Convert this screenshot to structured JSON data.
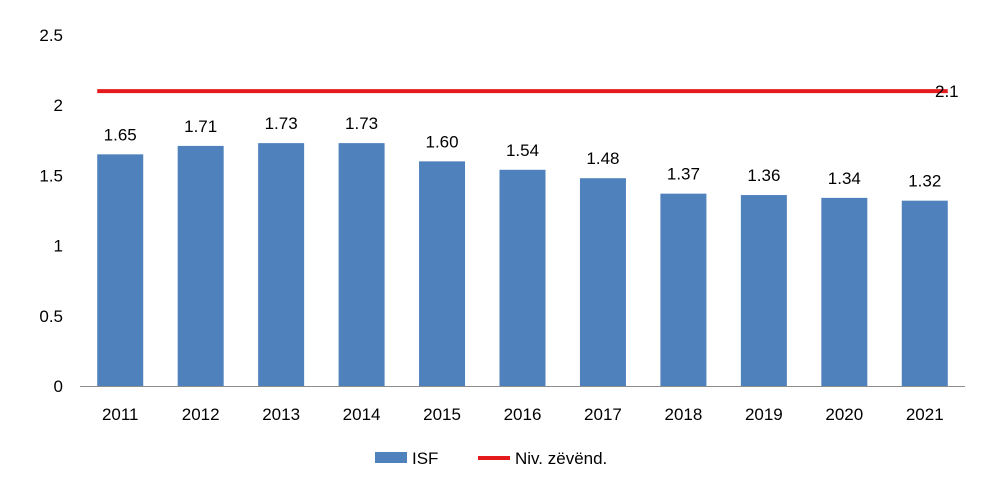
{
  "chart_data": {
    "type": "bar",
    "categories": [
      "2011",
      "2012",
      "2013",
      "2014",
      "2015",
      "2016",
      "2017",
      "2018",
      "2019",
      "2020",
      "2021"
    ],
    "series": [
      {
        "name": "ISF",
        "type": "bar",
        "values": [
          1.65,
          1.71,
          1.73,
          1.73,
          1.6,
          1.54,
          1.48,
          1.37,
          1.36,
          1.34,
          1.32
        ],
        "value_labels": [
          "1.65",
          "1.71",
          "1.73",
          "1.73",
          "1.60",
          "1.54",
          "1.48",
          "1.37",
          "1.36",
          "1.34",
          "1.32"
        ],
        "color": "#4F81BD"
      },
      {
        "name": "Niv. zëvënd.",
        "type": "line",
        "values": [
          2.1,
          2.1,
          2.1,
          2.1,
          2.1,
          2.1,
          2.1,
          2.1,
          2.1,
          2.1,
          2.1
        ],
        "end_label": "2.1",
        "color": "#E41A1C"
      }
    ],
    "ylim": [
      0,
      2.5
    ],
    "yticks": [
      "0",
      "0.5",
      "1",
      "1.5",
      "2",
      "2.5"
    ],
    "grid": false,
    "legend_position": "bottom",
    "title": "",
    "xlabel": "",
    "ylabel": ""
  }
}
